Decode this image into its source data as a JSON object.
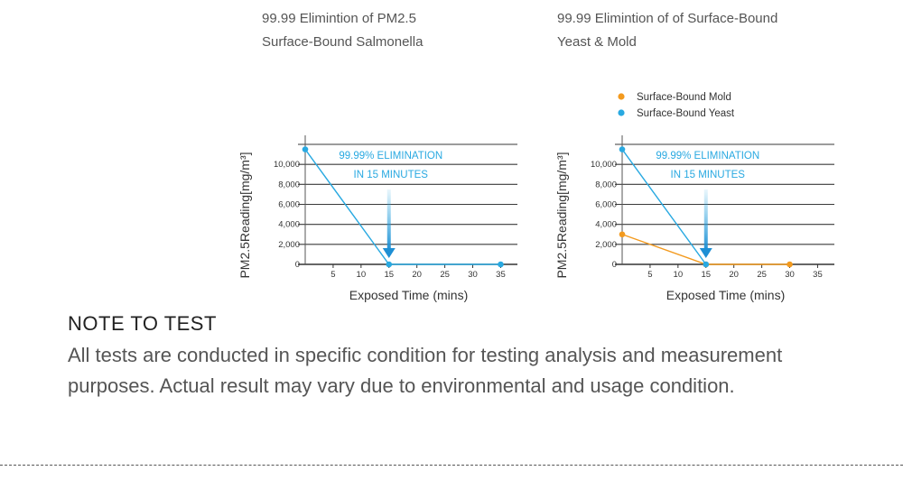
{
  "chart_data": [
    {
      "type": "line",
      "caption": [
        "99.99 Elimintion of PM2.5",
        "Surface-Bound Salmonella"
      ],
      "xlabel": "Exposed Time (mins)",
      "ylabel": "PM2.5Reading[mg/m³]",
      "xticks": [
        5,
        10,
        15,
        20,
        25,
        30,
        35
      ],
      "yticks": [
        0,
        2000,
        4000,
        6000,
        8000,
        10000
      ],
      "ytick_labels": [
        "0",
        "2,000",
        "4,000",
        "6,000",
        "8,000",
        "10,000"
      ],
      "xlim": [
        0,
        38
      ],
      "ylim": [
        0,
        12000
      ],
      "grid": true,
      "annotation": [
        "99.99% ELIMINATION",
        "IN 15 MINUTES"
      ],
      "legend": [],
      "series": [
        {
          "color": "#29a9e1",
          "points": [
            [
              0,
              11500
            ],
            [
              15,
              0
            ],
            [
              35,
              0
            ]
          ]
        }
      ]
    },
    {
      "type": "line",
      "caption": [
        "99.99 Elimintion of of Surface-Bound",
        "Yeast & Mold"
      ],
      "xlabel": "Exposed Time (mins)",
      "ylabel": "PM2.5Reading[mg/m³]",
      "xticks": [
        5,
        10,
        15,
        20,
        25,
        30,
        35
      ],
      "yticks": [
        0,
        2000,
        4000,
        6000,
        8000,
        10000
      ],
      "ytick_labels": [
        "0",
        "2,000",
        "4,000",
        "6,000",
        "8,000",
        "10,000"
      ],
      "xlim": [
        0,
        38
      ],
      "ylim": [
        0,
        12000
      ],
      "grid": true,
      "annotation": [
        "99.99% ELIMINATION",
        "IN 15 MINUTES"
      ],
      "legend": [
        "Surface-Bound Mold",
        "Surface-Bound Yeast"
      ],
      "series": [
        {
          "name": "Surface-Bound Mold",
          "color": "#f39a1e",
          "points": [
            [
              0,
              3000
            ],
            [
              15,
              0
            ],
            [
              30,
              0
            ]
          ]
        },
        {
          "name": "Surface-Bound Yeast",
          "color": "#29a9e1",
          "points": [
            [
              0,
              11500
            ],
            [
              15,
              0
            ]
          ]
        }
      ]
    }
  ],
  "note": {
    "title": "NOTE TO TEST",
    "body": "All tests are conducted in specific condition for testing analysis and measurement purposes. Actual result may vary due to environmental and usage condition."
  }
}
